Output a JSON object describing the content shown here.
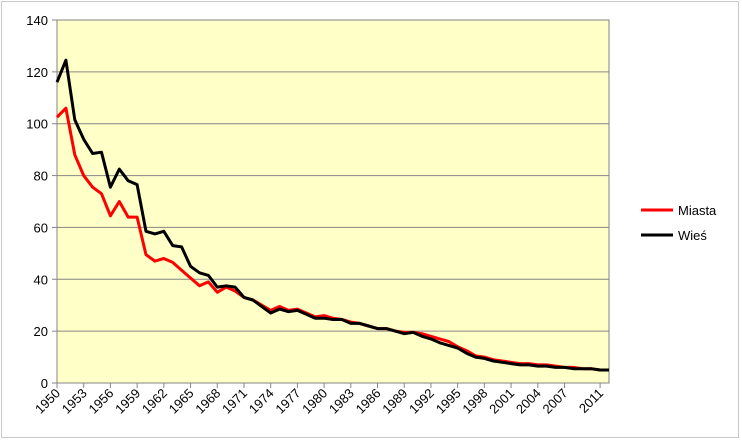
{
  "chart_data": {
    "type": "line",
    "title": "",
    "xlabel": "",
    "ylabel": "",
    "xlim": [
      1950,
      2012
    ],
    "ylim": [
      0,
      140
    ],
    "yticks": [
      0,
      20,
      40,
      60,
      80,
      100,
      120,
      140
    ],
    "xticks": [
      1950,
      1953,
      1956,
      1959,
      1962,
      1965,
      1968,
      1971,
      1974,
      1977,
      1980,
      1983,
      1986,
      1989,
      1992,
      1995,
      1998,
      2001,
      2004,
      2007,
      2011
    ],
    "grid": "horizontal",
    "background": "#ffffc8",
    "legend_position": "right",
    "x": [
      1950,
      1951,
      1952,
      1953,
      1954,
      1955,
      1956,
      1957,
      1958,
      1959,
      1960,
      1961,
      1962,
      1963,
      1964,
      1965,
      1966,
      1967,
      1968,
      1969,
      1970,
      1971,
      1972,
      1973,
      1974,
      1975,
      1976,
      1977,
      1978,
      1979,
      1980,
      1981,
      1982,
      1983,
      1984,
      1985,
      1986,
      1987,
      1988,
      1989,
      1990,
      1991,
      1992,
      1993,
      1994,
      1995,
      1996,
      1997,
      1998,
      1999,
      2000,
      2001,
      2002,
      2003,
      2004,
      2005,
      2006,
      2007,
      2008,
      2009,
      2010,
      2011,
      2012
    ],
    "series": [
      {
        "name": "Miasta",
        "color": "#ff0000",
        "values": [
          102.5,
          106,
          88,
          80,
          75.5,
          73,
          64.5,
          70,
          64,
          64,
          49.5,
          47,
          48,
          46.5,
          43.5,
          40.5,
          37.5,
          39,
          35,
          37,
          35.5,
          33,
          32,
          30,
          28,
          29.5,
          28,
          28.5,
          27,
          25.5,
          26,
          25,
          24.5,
          23.5,
          23,
          22,
          21,
          21,
          20,
          19.5,
          19.5,
          19,
          18,
          17,
          16,
          14,
          12.5,
          10.5,
          10,
          9,
          8.5,
          8,
          7.5,
          7.5,
          7,
          7,
          6.5,
          6,
          6,
          5.5,
          5.5,
          5,
          5
        ]
      },
      {
        "name": "Wieś",
        "color": "#000000",
        "values": [
          116,
          124.5,
          101.5,
          94,
          88.5,
          89,
          75.5,
          82.5,
          78,
          76.5,
          58.5,
          57.5,
          58.5,
          53,
          52.5,
          45,
          42.5,
          41.5,
          37,
          37.5,
          37,
          33,
          32,
          29.5,
          27,
          28.5,
          27.5,
          28,
          26.5,
          25,
          25,
          24.5,
          24.5,
          23,
          23,
          22,
          21,
          21,
          20,
          19,
          19.5,
          18,
          17,
          15.5,
          14.5,
          13.5,
          11.5,
          10,
          9.5,
          8.5,
          8,
          7.5,
          7,
          7,
          6.5,
          6.5,
          6,
          6,
          5.5,
          5.5,
          5.5,
          5,
          5
        ]
      }
    ]
  }
}
